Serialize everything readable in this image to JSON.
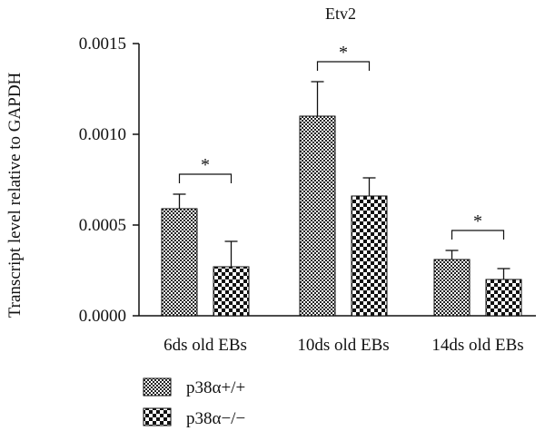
{
  "chart_data": {
    "type": "bar",
    "title": "Etv2",
    "xlabel": "",
    "ylabel": "Transcript level relative to GAPDH",
    "ylim": [
      0,
      0.0015
    ],
    "yticks": [
      0,
      0.0005,
      0.001,
      0.0015
    ],
    "ytick_labels": [
      "0.0000",
      "0.0005",
      "0.0010",
      "0.0015"
    ],
    "categories": [
      "6ds old EBs",
      "10ds old EBs",
      "14ds old EBs"
    ],
    "series": [
      {
        "name": "p38α+/+",
        "pattern": "fine-checker",
        "values": [
          0.00059,
          0.0011,
          0.00031
        ],
        "errors": [
          8e-05,
          0.00019,
          5e-05
        ]
      },
      {
        "name": "p38α−/−",
        "pattern": "coarse-checker",
        "values": [
          0.00027,
          0.00066,
          0.0002
        ],
        "errors": [
          0.00014,
          0.0001,
          6e-05
        ]
      }
    ],
    "significance": [
      "*",
      "*",
      "*"
    ],
    "legend_position": "bottom-left",
    "grid": false
  },
  "colors": {
    "axis": "#111111",
    "bar_fill": "#111111",
    "bar_background": "#ffffff"
  }
}
